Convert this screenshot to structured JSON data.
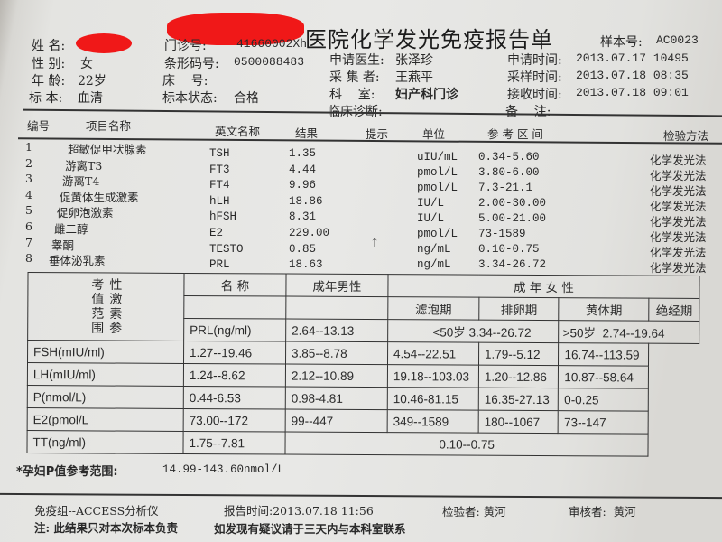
{
  "report": {
    "title": "医院化学发光免疫报告单",
    "sample_no_label": "样本号:",
    "sample_no": "AC0023"
  },
  "patient": {
    "name_label": "姓 名:",
    "gender_label": "性 别:",
    "gender": "女",
    "age_label": "年 龄:",
    "age": "22岁",
    "specimen_label": "标 本:",
    "specimen": "血清"
  },
  "visit": {
    "clinic_no_label": "门诊号:",
    "clinic_no": "41660002Xh",
    "barcode_label": "条形码号:",
    "barcode": "0500088483",
    "bed_label": "床    号:",
    "specimen_status_label": "标本状态:",
    "specimen_status": "合格"
  },
  "staff": {
    "doctor_label": "申请医生:",
    "doctor": "张泽珍",
    "collector_label": "采 集 者:",
    "collector": "王燕平",
    "dept_label": "科    室:",
    "dept": "妇产科门诊",
    "diagnosis_label": "临床诊断:"
  },
  "times": {
    "request_label": "申请时间:",
    "request": "2013.07.17 10495",
    "sampling_label": "采样时间:",
    "sampling": "2013.07.18 08:35",
    "receive_label": "接收时间:",
    "receive": "2013.07.18 09:01",
    "remark_label": "备    注:"
  },
  "results": {
    "headers": {
      "no": "编号",
      "name": "项目名称",
      "en": "英文名称",
      "result": "结果",
      "flag": "提示",
      "unit": "单位",
      "ref": "参 考 区 间",
      "method": "检验方法"
    },
    "rows": [
      {
        "no": "1",
        "name": "超敏促甲状腺素",
        "en": "TSH",
        "result": "1.35",
        "flag": "",
        "unit": "uIU/mL",
        "ref": "0.34-5.60",
        "method": "化学发光法"
      },
      {
        "no": "2",
        "name": "游离T3",
        "en": "FT3",
        "result": "4.44",
        "flag": "",
        "unit": "pmol/L",
        "ref": "3.80-6.00",
        "method": "化学发光法"
      },
      {
        "no": "3",
        "name": "游离T4",
        "en": "FT4",
        "result": "9.96",
        "flag": "",
        "unit": "pmol/L",
        "ref": "7.3-21.1",
        "method": "化学发光法"
      },
      {
        "no": "4",
        "name": "促黄体生成激素",
        "en": "hLH",
        "result": "18.86",
        "flag": "",
        "unit": "IU/L",
        "ref": "2.00-30.00",
        "method": "化学发光法"
      },
      {
        "no": "5",
        "name": "促卵泡激素",
        "en": "hFSH",
        "result": "8.31",
        "flag": "",
        "unit": "IU/L",
        "ref": "5.00-21.00",
        "method": "化学发光法"
      },
      {
        "no": "6",
        "name": "雌二醇",
        "en": "E2",
        "result": "229.00",
        "flag": "",
        "unit": "pmol/L",
        "ref": "73-1589",
        "method": "化学发光法"
      },
      {
        "no": "7",
        "name": "睾酮",
        "en": "TESTO",
        "result": "0.85",
        "flag": "↑",
        "unit": "ng/mL",
        "ref": "0.10-0.75",
        "method": "化学发光法"
      },
      {
        "no": "8",
        "name": "垂体泌乳素",
        "en": "PRL",
        "result": "18.63",
        "flag": "",
        "unit": "ng/mL",
        "ref": "3.34-26.72",
        "method": "化学发光法"
      }
    ]
  },
  "ref_table": {
    "side_label": "性激素参考值范围",
    "name_header": "名   称",
    "male_header": "成年男性",
    "female_header": "成 年 女 性",
    "phases": [
      "滤泡期",
      "排卵期",
      "黄体期",
      "绝经期"
    ],
    "prl": {
      "name": "PRL(ng/ml)",
      "male": "2.64--13.13",
      "female_under50": "<50岁 3.34--26.72",
      "female_over50": ">50岁  2.74--19.64"
    },
    "rows": [
      {
        "name": "FSH(mIU/ml)",
        "male": "1.27--19.46",
        "f": [
          "3.85--8.78",
          "4.54--22.51",
          "1.79--5.12",
          "16.74--113.59"
        ]
      },
      {
        "name": "LH(mIU/ml)",
        "male": "1.24--8.62",
        "f": [
          "2.12--10.89",
          "19.18--103.03",
          "1.20--12.86",
          "10.87--58.64"
        ]
      },
      {
        "name": "P(nmol/L)",
        "male": "0.44-6.53",
        "f": [
          "0.98-4.81",
          "10.46-81.15",
          "16.35-27.13",
          "0-0.25"
        ]
      },
      {
        "name": "E2(pmol/L",
        "male": "73.00--172",
        "f": [
          "99--447",
          "349--1589",
          "180--1067",
          "73--147"
        ]
      }
    ],
    "tt": {
      "name": "TT(ng/ml)",
      "male": "1.75--7.81",
      "female": "0.10--0.75"
    }
  },
  "note": {
    "label": "*孕妇P值参考范围:",
    "value": "14.99-143.60nmol/L"
  },
  "footer": {
    "analyzer": "免疫组--ACCESS分析仪",
    "report_time": "报告时间:2013.07.18 11:56",
    "tester": "检验者: 黄河",
    "reviewer": "审核者:  黄河",
    "disclaimer": "注: 此结果只对本次标本负责",
    "contact": "如发现有疑议请于三天内与本科室联系"
  },
  "colors": {
    "redaction": "#f01818",
    "paper": "#e6e6e3",
    "ink": "#2a2a2a"
  }
}
